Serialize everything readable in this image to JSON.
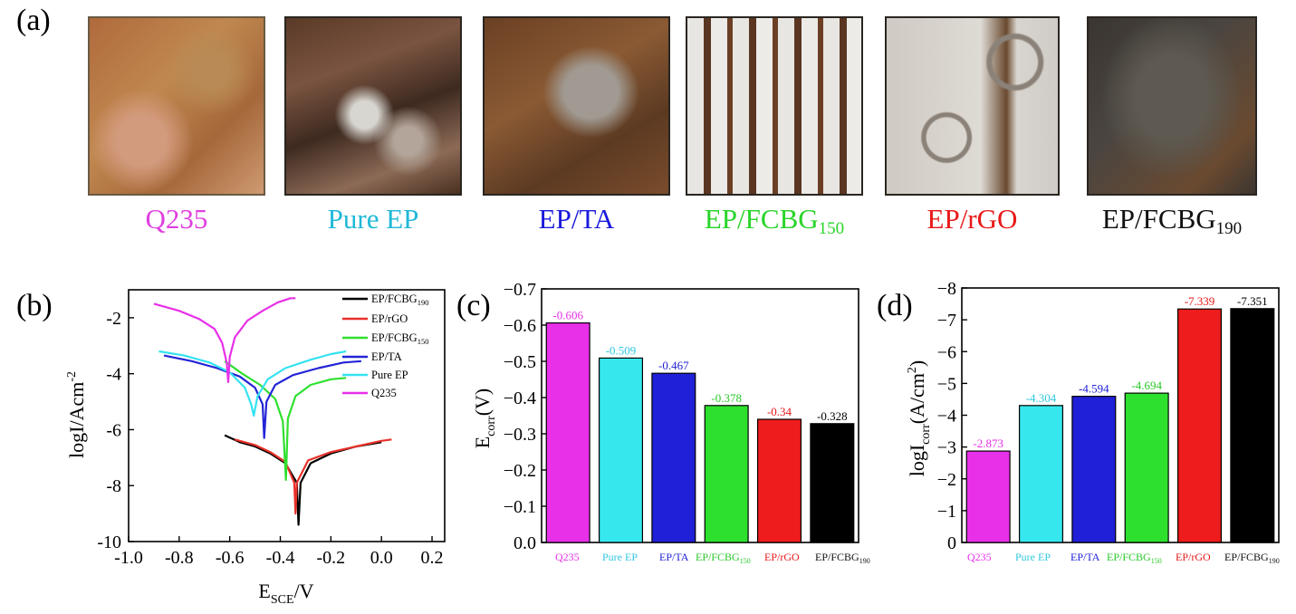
{
  "panel_a": {
    "letter": "(a)",
    "samples": [
      {
        "name": "Q235",
        "sub": "",
        "color": "#e040e0"
      },
      {
        "name": "Pure EP",
        "sub": "",
        "color": "#20b8d8"
      },
      {
        "name": "EP/TA",
        "sub": "",
        "color": "#1a1adc"
      },
      {
        "name": "EP/FCBG",
        "sub": "150",
        "color": "#28d428"
      },
      {
        "name": "EP/rGO",
        "sub": "",
        "color": "#e81818"
      },
      {
        "name": "EP/FCBG",
        "sub": "190",
        "color": "#111111"
      }
    ]
  },
  "panel_b": {
    "letter": "(b)",
    "ylabel": "logI/Acm",
    "ylabel_sup": "-2",
    "xlabel": "E",
    "xlabel_sub": "SCE",
    "xlabel_suffix": "/V",
    "xticks": [
      "-1.0",
      "-0.8",
      "-0.6",
      "-0.4",
      "-0.2",
      "0.0",
      "0.2"
    ],
    "yticks": [
      "-2",
      "-4",
      "-6",
      "-8",
      "-10"
    ],
    "legend": [
      {
        "name": "EP/FCBG",
        "sub": "190"
      },
      {
        "name": "EP/rGO",
        "sub": ""
      },
      {
        "name": "EP/FCBG",
        "sub": "150"
      },
      {
        "name": "EP/TA",
        "sub": ""
      },
      {
        "name": "Pure EP",
        "sub": ""
      },
      {
        "name": "Q235",
        "sub": ""
      }
    ]
  },
  "panel_c": {
    "letter": "(c)",
    "ylabel": "E",
    "ylabel_sub": "corr",
    "ylabel_suffix": "(V)",
    "yticks": [
      "0.0",
      "−0.1",
      "−0.2",
      "−0.3",
      "−0.4",
      "−0.5",
      "−0.6",
      "−0.7"
    ]
  },
  "panel_d": {
    "letter": "(d)",
    "ylabel": "logI",
    "ylabel_sub": "corr",
    "ylabel_suffix": "(A/cm",
    "ylabel_sup": "2",
    "ylabel_end": ")",
    "yticks": [
      "0",
      "−1",
      "−2",
      "−3",
      "−4",
      "−5",
      "−6",
      "−7",
      "−8"
    ]
  },
  "chart_data": [
    {
      "type": "line",
      "panel": "b",
      "xlim": [
        -1.0,
        0.25
      ],
      "ylim": [
        -10,
        -1.0
      ],
      "series": [
        {
          "name": "EP/FCBG190",
          "color": "#000000",
          "x": [
            -0.62,
            -0.56,
            -0.5,
            -0.44,
            -0.38,
            -0.335,
            -0.328,
            -0.32,
            -0.28,
            -0.2,
            -0.1,
            0.0
          ],
          "y": [
            -6.2,
            -6.45,
            -6.6,
            -6.85,
            -7.2,
            -7.9,
            -9.4,
            -7.9,
            -7.2,
            -6.85,
            -6.6,
            -6.45
          ]
        },
        {
          "name": "EP/rGO",
          "color": "#e8302a",
          "x": [
            -0.58,
            -0.5,
            -0.44,
            -0.38,
            -0.345,
            -0.34,
            -0.335,
            -0.29,
            -0.2,
            -0.1,
            0.0,
            0.04
          ],
          "y": [
            -6.35,
            -6.55,
            -6.8,
            -7.15,
            -7.9,
            -9.0,
            -7.9,
            -7.1,
            -6.8,
            -6.6,
            -6.4,
            -6.35
          ]
        },
        {
          "name": "EP/FCBG150",
          "color": "#2ee02e",
          "x": [
            -0.62,
            -0.55,
            -0.48,
            -0.42,
            -0.39,
            -0.378,
            -0.37,
            -0.34,
            -0.28,
            -0.2,
            -0.14
          ],
          "y": [
            -3.55,
            -4.0,
            -4.4,
            -4.9,
            -5.7,
            -7.8,
            -5.6,
            -4.8,
            -4.4,
            -4.2,
            -4.15
          ]
        },
        {
          "name": "EP/TA",
          "color": "#2424d6",
          "x": [
            -0.86,
            -0.75,
            -0.65,
            -0.56,
            -0.5,
            -0.47,
            -0.464,
            -0.455,
            -0.42,
            -0.35,
            -0.25,
            -0.15,
            -0.08
          ],
          "y": [
            -3.35,
            -3.55,
            -3.8,
            -4.1,
            -4.5,
            -5.1,
            -6.3,
            -5.0,
            -4.4,
            -4.05,
            -3.8,
            -3.6,
            -3.55
          ]
        },
        {
          "name": "Pure EP",
          "color": "#36e2f2",
          "x": [
            -0.88,
            -0.78,
            -0.68,
            -0.6,
            -0.54,
            -0.515,
            -0.505,
            -0.49,
            -0.45,
            -0.38,
            -0.28,
            -0.2,
            -0.14
          ],
          "y": [
            -3.2,
            -3.35,
            -3.6,
            -3.95,
            -4.5,
            -5.1,
            -5.5,
            -4.8,
            -4.2,
            -3.8,
            -3.5,
            -3.3,
            -3.2
          ]
        },
        {
          "name": "Q235",
          "color": "#e830e8",
          "x": [
            -0.9,
            -0.8,
            -0.72,
            -0.66,
            -0.63,
            -0.612,
            -0.606,
            -0.6,
            -0.58,
            -0.53,
            -0.47,
            -0.41,
            -0.36,
            -0.34
          ],
          "y": [
            -1.5,
            -1.75,
            -2.05,
            -2.4,
            -2.9,
            -3.6,
            -4.3,
            -3.4,
            -2.7,
            -2.1,
            -1.75,
            -1.45,
            -1.3,
            -1.3
          ]
        }
      ]
    },
    {
      "type": "bar",
      "panel": "c",
      "ylim": [
        0,
        -0.7
      ],
      "categories": [
        "Q235",
        "Pure EP",
        "EP/TA",
        "EP/FCBG150",
        "EP/rGO",
        "EP/FCBG190"
      ],
      "values": [
        -0.606,
        -0.509,
        -0.467,
        -0.378,
        -0.34,
        -0.328
      ],
      "value_labels": [
        "-0.606",
        "-0.509",
        "-0.467",
        "-0.378",
        "-0.34",
        "-0.328"
      ],
      "colors": [
        "#e830e8",
        "#36e8ee",
        "#2020d8",
        "#2ee02e",
        "#ee1c1c",
        "#000000"
      ],
      "label_colors": [
        "#e830e8",
        "#30c8e0",
        "#2020d8",
        "#28c828",
        "#e81818",
        "#000000"
      ]
    },
    {
      "type": "bar",
      "panel": "d",
      "ylim": [
        0,
        -8
      ],
      "categories": [
        "Q235",
        "Pure EP",
        "EP/TA",
        "EP/FCBG150",
        "EP/rGO",
        "EP/FCBG190"
      ],
      "values": [
        -2.873,
        -4.304,
        -4.594,
        -4.694,
        -7.339,
        -7.351
      ],
      "value_labels": [
        "-2.873",
        "-4.304",
        "-4.594",
        "-4.694",
        "-7.339",
        "-7.351"
      ],
      "colors": [
        "#e830e8",
        "#36e8ee",
        "#2020d8",
        "#2ee02e",
        "#ee1c1c",
        "#000000"
      ],
      "label_colors": [
        "#e830e8",
        "#30c8e0",
        "#2020d8",
        "#28c828",
        "#e81818",
        "#000000"
      ]
    }
  ]
}
